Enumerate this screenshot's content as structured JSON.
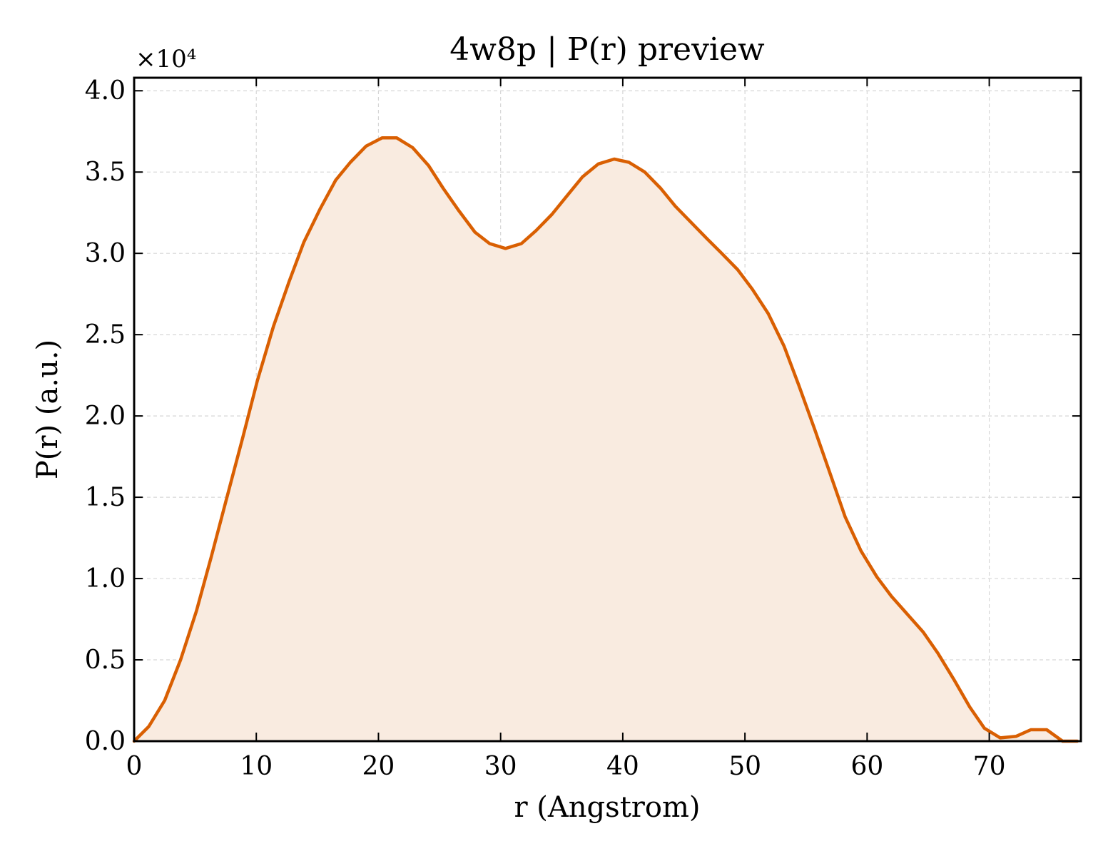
{
  "chart_data": {
    "type": "area",
    "title": "4w8p | P(r) preview",
    "xlabel": "r (Angstrom)",
    "ylabel": "P(r) (a.u.)",
    "y_offset_label": "×10⁴",
    "xlim": [
      0,
      77.5
    ],
    "ylim": [
      0,
      4.08
    ],
    "xticks": [
      0,
      10,
      20,
      30,
      40,
      50,
      60,
      70
    ],
    "xtick_labels": [
      "0",
      "10",
      "20",
      "30",
      "40",
      "50",
      "60",
      "70"
    ],
    "yticks": [
      0,
      0.5,
      1.0,
      1.5,
      2.0,
      2.5,
      3.0,
      3.5,
      4.0
    ],
    "ytick_labels": [
      "0.0",
      "0.5",
      "1.0",
      "1.5",
      "2.0",
      "2.5",
      "3.0",
      "3.5",
      "4.0"
    ],
    "grid": true,
    "line_color": "#D95F02",
    "fill_color": "#F9EBE0",
    "series": [
      {
        "x": [
          0,
          1.2,
          2.5,
          3.8,
          5.1,
          6.3,
          7.6,
          8.9,
          10.1,
          11.4,
          12.7,
          13.9,
          15.2,
          16.5,
          17.7,
          19.0,
          20.3,
          21.5,
          22.8,
          24.1,
          25.3,
          26.6,
          27.9,
          29.1,
          30.4,
          31.7,
          32.9,
          34.2,
          35.5,
          36.7,
          38.0,
          39.3,
          40.5,
          41.8,
          43.1,
          44.3,
          45.6,
          46.9,
          48.1,
          49.4,
          50.6,
          51.9,
          53.2,
          54.4,
          55.7,
          57.0,
          58.2,
          59.5,
          60.8,
          62.0,
          63.3,
          64.6,
          65.8,
          67.1,
          68.4,
          69.6,
          70.9,
          72.2,
          73.4,
          74.7,
          76.0,
          77.2
        ],
        "y": [
          0,
          0.09,
          0.25,
          0.5,
          0.8,
          1.13,
          1.5,
          1.87,
          2.22,
          2.55,
          2.83,
          3.07,
          3.27,
          3.45,
          3.56,
          3.66,
          3.71,
          3.71,
          3.65,
          3.54,
          3.4,
          3.26,
          3.13,
          3.06,
          3.03,
          3.06,
          3.14,
          3.24,
          3.36,
          3.47,
          3.55,
          3.58,
          3.56,
          3.5,
          3.4,
          3.29,
          3.19,
          3.09,
          3.0,
          2.9,
          2.78,
          2.63,
          2.43,
          2.19,
          1.92,
          1.64,
          1.38,
          1.17,
          1.01,
          0.89,
          0.78,
          0.67,
          0.54,
          0.38,
          0.21,
          0.08,
          0.02,
          0.03,
          0.07,
          0.07,
          0.0,
          0.0
        ]
      }
    ]
  }
}
